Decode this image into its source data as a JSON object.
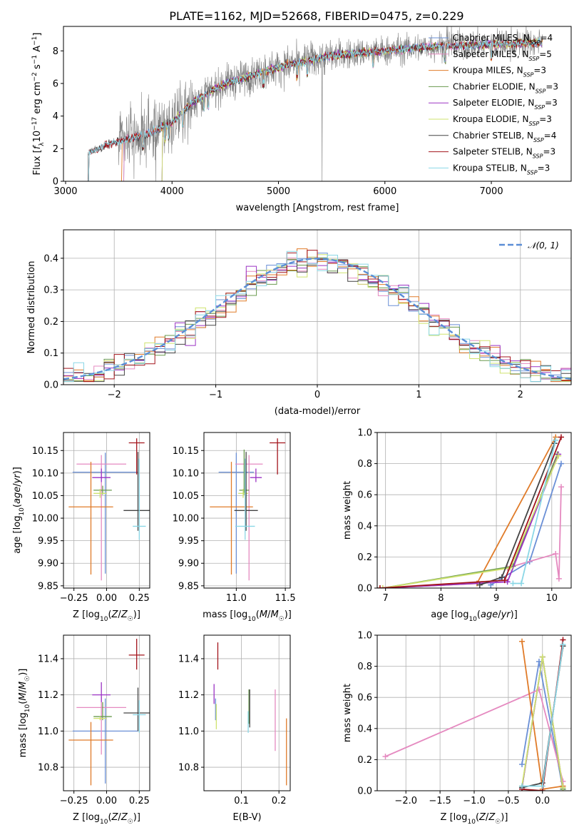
{
  "figure": {
    "title": "PLATE=1162, MJD=52668, FIBERID=0475, z=0.229"
  },
  "models": [
    {
      "name": "Chabrier MILES, N_SSP=4",
      "color": "#6a8fd6"
    },
    {
      "name": "Salpeter MILES, N_SSP=5",
      "color": "#e58ac0"
    },
    {
      "name": "Kroupa MILES, N_SSP=3",
      "color": "#e07b29"
    },
    {
      "name": "Chabrier ELODIE, N_SSP=3",
      "color": "#6a9a4e"
    },
    {
      "name": "Salpeter ELODIE, N_SSP=3",
      "color": "#9b33c4"
    },
    {
      "name": "Kroupa ELODIE, N_SSP=3",
      "color": "#cfe36f"
    },
    {
      "name": "Chabrier STELIB, N_SSP=4",
      "color": "#444444"
    },
    {
      "name": "Salpeter STELIB, N_SSP=3",
      "color": "#a3141c"
    },
    {
      "name": "Kroupa STELIB, N_SSP=3",
      "color": "#8ad7e6"
    }
  ],
  "chart_data": [
    {
      "id": "spectrum",
      "type": "line",
      "xlabel": "wavelength [Angstrom, rest frame]",
      "ylabel": "Flux [f_λ 10^-17 erg cm^-2 s^-1 A^-1]",
      "xlim": [
        2980,
        7750
      ],
      "ylim": [
        0,
        9.5
      ],
      "xticks": [
        3000,
        4000,
        5000,
        6000,
        7000
      ],
      "yticks": [
        0,
        2,
        4,
        6,
        8
      ],
      "grid": false,
      "legend_position": "top-right",
      "wavelength_range": [
        3210,
        7480
      ],
      "continuum": {
        "x": [
          3210,
          3400,
          3600,
          3800,
          4000,
          4200,
          4500,
          5000,
          5500,
          6000,
          6500,
          7000,
          7480
        ],
        "y": [
          1.7,
          2.3,
          2.6,
          3.0,
          3.6,
          4.9,
          6.0,
          7.0,
          7.7,
          8.0,
          8.3,
          8.4,
          8.5
        ]
      }
    },
    {
      "id": "residuals",
      "type": "step",
      "xlabel": "(data-model)/error",
      "ylabel": "Normed distribution",
      "xlim": [
        -2.5,
        2.5
      ],
      "ylim": [
        0,
        0.49
      ],
      "xticks": [
        -2,
        -1,
        0,
        1,
        2
      ],
      "yticks": [
        0.0,
        0.1,
        0.2,
        0.3,
        0.4
      ],
      "grid": true,
      "legend_position": "top-right",
      "normal_curve": {
        "label": "𝒩(0, 1)",
        "mean": 0,
        "sigma": 1,
        "color": "#5b8ed6"
      },
      "bin_width": 0.1
    },
    {
      "id": "age-vs-z",
      "type": "errorbar",
      "xlabel": "Z [log10(Z/Z☉)]",
      "ylabel": "age [log10(age/yr)]",
      "xlim": [
        -0.33,
        0.33
      ],
      "ylim": [
        9.845,
        10.19
      ],
      "xticks": [
        -0.25,
        0.0,
        0.25
      ],
      "yticks": [
        9.85,
        9.9,
        9.95,
        10.0,
        10.05,
        10.1,
        10.15
      ],
      "grid": true,
      "points": [
        {
          "x": -0.01,
          "y": 10.102,
          "xerr": 0.25,
          "yerr_lo": 0.225,
          "yerr_hi": 0.043
        },
        {
          "x": -0.04,
          "y": 10.12,
          "xerr": 0.19,
          "yerr_lo": 0.258,
          "yerr_hi": 0.02
        },
        {
          "x": -0.12,
          "y": 10.025,
          "xerr": 0.17,
          "yerr_lo": 0.15,
          "yerr_hi": 0.1
        },
        {
          "x": -0.03,
          "y": 10.062,
          "xerr": 0.07,
          "yerr_lo": 0.01,
          "yerr_hi": 0.01
        },
        {
          "x": -0.04,
          "y": 10.09,
          "xerr": 0.07,
          "yerr_lo": 0.01,
          "yerr_hi": 0.02
        },
        {
          "x": -0.05,
          "y": 10.055,
          "xerr": 0.05,
          "yerr_lo": 0.01,
          "yerr_hi": 0.01
        },
        {
          "x": 0.24,
          "y": 10.017,
          "xerr": 0.11,
          "yerr_lo": 0.045,
          "yerr_hi": 0.13
        },
        {
          "x": 0.23,
          "y": 10.167,
          "xerr": 0.06,
          "yerr_lo": 0.07,
          "yerr_hi": 0.01
        },
        {
          "x": 0.25,
          "y": 9.982,
          "xerr": 0.05,
          "yerr_lo": 0.03,
          "yerr_hi": 0.15
        }
      ]
    },
    {
      "id": "age-vs-mass",
      "type": "errorbar",
      "xlabel": "mass [log10(M/M☉)]",
      "ylabel": "",
      "xlim": [
        10.67,
        11.55
      ],
      "ylim": [
        9.845,
        10.19
      ],
      "xticks": [
        11.0,
        11.5
      ],
      "yticks": [
        9.85,
        9.9,
        9.95,
        10.0,
        10.05,
        10.1,
        10.15
      ],
      "grid": true,
      "points": [
        {
          "x": 11.0,
          "y": 10.102,
          "xerr": 0.18,
          "yerr_lo": 0.225,
          "yerr_hi": 0.043
        },
        {
          "x": 11.13,
          "y": 10.12,
          "xerr": 0.14,
          "yerr_lo": 0.258,
          "yerr_hi": 0.02
        },
        {
          "x": 10.95,
          "y": 10.025,
          "xerr": 0.22,
          "yerr_lo": 0.15,
          "yerr_hi": 0.1
        },
        {
          "x": 11.08,
          "y": 10.062,
          "xerr": 0.05,
          "yerr_lo": 0.01,
          "yerr_hi": 0.09
        },
        {
          "x": 11.2,
          "y": 10.09,
          "xerr": 0.06,
          "yerr_lo": 0.01,
          "yerr_hi": 0.02
        },
        {
          "x": 11.07,
          "y": 10.055,
          "xerr": 0.05,
          "yerr_lo": 0.01,
          "yerr_hi": 0.01
        },
        {
          "x": 11.1,
          "y": 10.017,
          "xerr": 0.12,
          "yerr_lo": 0.045,
          "yerr_hi": 0.13
        },
        {
          "x": 11.42,
          "y": 10.167,
          "xerr": 0.08,
          "yerr_lo": 0.07,
          "yerr_hi": 0.01
        },
        {
          "x": 11.09,
          "y": 9.982,
          "xerr": 0.1,
          "yerr_lo": 0.03,
          "yerr_hi": 0.15
        }
      ]
    },
    {
      "id": "mass-weight-vs-age",
      "type": "line",
      "xlabel": "age  [log10(age/yr)]",
      "ylabel": "mass weight",
      "xlim": [
        6.85,
        10.35
      ],
      "ylim": [
        0,
        1.0
      ],
      "xticks": [
        7,
        8,
        9,
        10
      ],
      "yticks": [
        0.0,
        0.2,
        0.4,
        0.6,
        0.8,
        1.0
      ],
      "grid": true,
      "series": [
        {
          "x": [
            8.9,
            9.6,
            10.17
          ],
          "y": [
            0.02,
            0.17,
            0.8
          ]
        },
        {
          "x": [
            9.2,
            10.07,
            10.13,
            10.17
          ],
          "y": [
            0.13,
            0.22,
            0.06,
            0.65
          ]
        },
        {
          "x": [
            6.9,
            8.65,
            10.07
          ],
          "y": [
            0.0,
            0.03,
            0.97
          ]
        },
        {
          "x": [
            6.95,
            9.3,
            10.1
          ],
          "y": [
            0.0,
            0.14,
            0.86
          ]
        },
        {
          "x": [
            6.95,
            9.2,
            10.12
          ],
          "y": [
            0.0,
            0.04,
            0.86
          ]
        },
        {
          "x": [
            6.95,
            9.25,
            10.12
          ],
          "y": [
            0.0,
            0.13,
            0.85
          ]
        },
        {
          "x": [
            8.7,
            9.1,
            10.05
          ],
          "y": [
            0.02,
            0.07,
            0.93
          ]
        },
        {
          "x": [
            6.9,
            9.15,
            10.17
          ],
          "y": [
            0.0,
            0.05,
            0.97
          ]
        },
        {
          "x": [
            9.3,
            9.45,
            10.07
          ],
          "y": [
            0.03,
            0.03,
            0.95
          ]
        }
      ]
    },
    {
      "id": "mass-vs-z",
      "type": "errorbar",
      "xlabel": "Z [log10(Z/Z☉)]",
      "ylabel": "mass [log10(M/M☉)]",
      "xlim": [
        -0.33,
        0.33
      ],
      "ylim": [
        10.67,
        11.53
      ],
      "xticks": [
        -0.25,
        0.0,
        0.25
      ],
      "yticks": [
        10.8,
        11.0,
        11.2,
        11.4
      ],
      "grid": true,
      "points": [
        {
          "x": -0.01,
          "y": 11.0,
          "xerr": 0.25,
          "yerr_lo": 0.29,
          "yerr_hi": 0.18
        },
        {
          "x": -0.04,
          "y": 11.13,
          "xerr": 0.19,
          "yerr_lo": 0.26,
          "yerr_hi": 0.06
        },
        {
          "x": -0.12,
          "y": 10.95,
          "xerr": 0.17,
          "yerr_lo": 0.25,
          "yerr_hi": 0.1
        },
        {
          "x": -0.03,
          "y": 11.08,
          "xerr": 0.07,
          "yerr_lo": 0.02,
          "yerr_hi": 0.08
        },
        {
          "x": -0.04,
          "y": 11.2,
          "xerr": 0.07,
          "yerr_lo": 0.04,
          "yerr_hi": 0.07
        },
        {
          "x": -0.05,
          "y": 11.07,
          "xerr": 0.05,
          "yerr_lo": 0.01,
          "yerr_hi": 0.01
        },
        {
          "x": 0.24,
          "y": 11.1,
          "xerr": 0.11,
          "yerr_lo": 0.1,
          "yerr_hi": 0.14
        },
        {
          "x": 0.23,
          "y": 11.42,
          "xerr": 0.06,
          "yerr_lo": 0.08,
          "yerr_hi": 0.09
        },
        {
          "x": 0.25,
          "y": 11.09,
          "xerr": 0.05,
          "yerr_lo": 0.1,
          "yerr_hi": 0.08
        }
      ]
    },
    {
      "id": "mass-vs-ebv",
      "type": "errorbar",
      "xlabel": "E(B-V)",
      "ylabel": "",
      "xlim": [
        0.0,
        0.23
      ],
      "ylim": [
        10.67,
        11.53
      ],
      "xticks": [
        0.1,
        0.2
      ],
      "yticks": [
        10.8,
        11.0,
        11.2,
        11.4
      ],
      "grid": true,
      "points": [
        {
          "x": 0.031,
          "y": 11.1,
          "xerr": 0,
          "yerr_lo": 0.04,
          "yerr_hi": 0.08
        },
        {
          "x": 0.19,
          "y": 11.06,
          "xerr": 0,
          "yerr_lo": 0.17,
          "yerr_hi": 0.17
        },
        {
          "x": 0.22,
          "y": 10.88,
          "xerr": 0,
          "yerr_lo": 0.18,
          "yerr_hi": 0.19
        },
        {
          "x": 0.12,
          "y": 11.1,
          "xerr": 0,
          "yerr_lo": 0.06,
          "yerr_hi": 0.13
        },
        {
          "x": 0.027,
          "y": 11.2,
          "xerr": 0,
          "yerr_lo": 0.05,
          "yerr_hi": 0.06
        },
        {
          "x": 0.033,
          "y": 11.08,
          "xerr": 0,
          "yerr_lo": 0.07,
          "yerr_hi": 0.07
        },
        {
          "x": 0.122,
          "y": 11.12,
          "xerr": 0,
          "yerr_lo": 0.1,
          "yerr_hi": 0.11
        },
        {
          "x": 0.037,
          "y": 11.42,
          "xerr": 0,
          "yerr_lo": 0.08,
          "yerr_hi": 0.07
        },
        {
          "x": 0.118,
          "y": 11.05,
          "xerr": 0,
          "yerr_lo": 0.06,
          "yerr_hi": 0.06
        }
      ]
    },
    {
      "id": "mass-weight-vs-z",
      "type": "line",
      "xlabel": "Z [log10(Z/Z☉)]",
      "ylabel": "mass weight",
      "xlim": [
        -2.42,
        0.42
      ],
      "ylim": [
        0,
        1.0
      ],
      "xticks": [
        -2.0,
        -1.5,
        -1.0,
        -0.5,
        0.0
      ],
      "yticks": [
        0.0,
        0.2,
        0.4,
        0.6,
        0.8,
        1.0
      ],
      "grid": true,
      "series": [
        {
          "x": [
            -0.3,
            -0.05,
            0.3
          ],
          "y": [
            0.17,
            0.83,
            0.01
          ]
        },
        {
          "x": [
            -2.3,
            -0.05,
            0.3
          ],
          "y": [
            0.22,
            0.65,
            0.06
          ]
        },
        {
          "x": [
            -0.3,
            0.0,
            0.3
          ],
          "y": [
            0.96,
            0.01,
            0.03
          ]
        },
        {
          "x": [
            -0.3,
            0.0,
            0.3
          ],
          "y": [
            0.02,
            0.86,
            0.01
          ]
        },
        {
          "x": [
            -0.3,
            0.0,
            0.3
          ],
          "y": [
            0.02,
            0.86,
            0.02
          ]
        },
        {
          "x": [
            -0.3,
            0.0,
            0.3
          ],
          "y": [
            0.03,
            0.86,
            0.02
          ]
        },
        {
          "x": [
            -0.3,
            0.0,
            0.3
          ],
          "y": [
            0.02,
            0.05,
            0.93
          ]
        },
        {
          "x": [
            -0.3,
            0.0,
            0.3
          ],
          "y": [
            0.01,
            0.0,
            0.97
          ]
        },
        {
          "x": [
            -0.3,
            0.0,
            0.3
          ],
          "y": [
            0.03,
            0.03,
            0.94
          ]
        }
      ]
    }
  ]
}
